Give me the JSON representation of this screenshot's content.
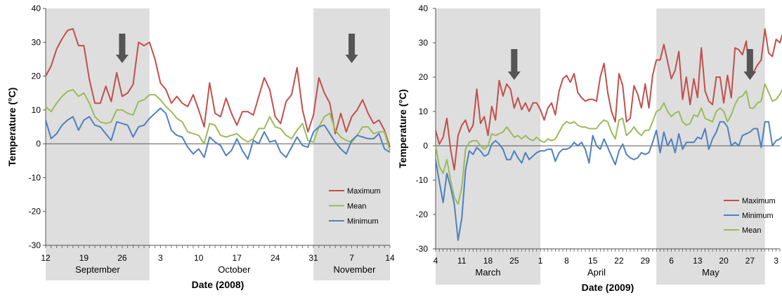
{
  "chart_data": [
    {
      "type": "line",
      "title": "",
      "xlabel": "Date (2008)",
      "ylabel": "Temperature (°C)",
      "ylim": [
        -30,
        40
      ],
      "yticks": [
        "40",
        "30",
        "20",
        "10",
        "0",
        "-10",
        "-20",
        "-30"
      ],
      "x_start": "2008-09-12",
      "x_end": "2008-11-14",
      "xticks": [
        "12",
        "19",
        "26",
        "3",
        "10",
        "17",
        "24",
        "31",
        "7",
        "14"
      ],
      "month_labels": [
        "September",
        "October",
        "November"
      ],
      "shaded_periods": [
        [
          "2008-09-12",
          "2008-10-01"
        ],
        [
          "2008-10-31",
          "2008-11-14"
        ]
      ],
      "arrow_dates": [
        "2008-09-26",
        "2008-11-07"
      ],
      "legend_position": "lower-right",
      "grid": false,
      "series": [
        {
          "name": "Maximum",
          "color": "#c0504d",
          "values": [
            20,
            23,
            28,
            31,
            33.5,
            34,
            29,
            29,
            19,
            12,
            12,
            17,
            12.5,
            21,
            14,
            15,
            17.5,
            30,
            29,
            30,
            25,
            18,
            16,
            12,
            14,
            12,
            11,
            14.5,
            10,
            5,
            18,
            9,
            8,
            13.5,
            9,
            5.5,
            9.5,
            9.5,
            8.5,
            14,
            19.5,
            16,
            8,
            6,
            12.5,
            14.5,
            22.5,
            10,
            3.5,
            8.5,
            19.5,
            15,
            12,
            3,
            9,
            3.5,
            8,
            10,
            13,
            9,
            6,
            7,
            4,
            -1
          ]
        },
        {
          "name": "Mean",
          "color": "#9bbb59",
          "values": [
            11,
            9.5,
            12,
            14,
            15.5,
            16,
            14,
            15,
            12,
            8,
            6.5,
            6,
            6.5,
            10,
            10,
            9,
            8.5,
            12.5,
            13,
            14.5,
            14.5,
            13,
            11,
            9.5,
            7.5,
            6.5,
            3.5,
            3,
            2.5,
            0,
            6,
            5.5,
            2.5,
            2,
            2.5,
            3,
            1.5,
            0.5,
            1.5,
            4.5,
            4.5,
            8,
            5,
            4.5,
            2.5,
            1.5,
            4,
            6,
            1,
            0.5,
            5,
            8,
            9,
            4,
            2,
            1,
            0.5,
            2.5,
            5,
            5,
            3,
            3.5,
            3.5,
            -2
          ]
        },
        {
          "name": "Minimum",
          "color": "#4f81bd",
          "values": [
            7,
            1.5,
            3,
            5.5,
            7,
            8,
            4,
            7,
            8,
            5.5,
            5,
            3,
            1,
            6.5,
            6,
            5.5,
            2,
            5,
            5.5,
            7.5,
            9,
            10.5,
            9,
            4,
            2.5,
            2,
            -1,
            -3,
            -1.5,
            -4,
            2,
            0.5,
            -0.5,
            -3.5,
            -2,
            1.5,
            -2,
            -4.5,
            1,
            0,
            3.5,
            0.5,
            1,
            -2.5,
            -4,
            -1,
            2,
            -0.5,
            -1,
            3.5,
            5,
            5.5,
            3,
            0.5,
            -1.5,
            -3,
            1,
            2.5,
            2,
            1.5,
            1.5,
            3,
            -1.5,
            -2.5
          ]
        }
      ]
    },
    {
      "type": "line",
      "title": "",
      "xlabel": "Date (2009)",
      "ylabel": "Temperature (°C)",
      "ylim": [
        -30,
        40
      ],
      "yticks": [
        "40",
        "30",
        "20",
        "10",
        "0",
        "-10",
        "-20",
        "-30"
      ],
      "x_start": "2009-03-04",
      "x_end": "2009-06-04",
      "xticks": [
        "4",
        "11",
        "18",
        "25",
        "1",
        "8",
        "15",
        "22",
        "29",
        "6",
        "13",
        "20",
        "27",
        "3"
      ],
      "month_labels": [
        "March",
        "April",
        "May"
      ],
      "shaded_periods": [
        [
          "2009-03-04",
          "2009-04-01"
        ],
        [
          "2009-05-02",
          "2009-05-31"
        ]
      ],
      "arrow_dates": [
        "2009-03-25",
        "2009-05-27"
      ],
      "legend_position": "lower-right",
      "grid": false,
      "series": [
        {
          "name": "Maximum",
          "color": "#c0504d",
          "values": [
            4.5,
            0.5,
            2.5,
            8,
            -1,
            -7,
            3,
            6,
            7.5,
            4,
            6,
            16.5,
            6.5,
            8.5,
            3,
            11.5,
            7.5,
            19,
            14.5,
            18,
            16.5,
            11,
            14,
            10.5,
            12.5,
            10,
            12.5,
            12.5,
            10.5,
            7.5,
            11,
            12.5,
            9,
            16,
            19.5,
            20.5,
            18.5,
            21,
            15.5,
            14,
            13,
            13.5,
            13.5,
            13,
            20,
            24,
            15.5,
            10,
            7,
            21,
            17.5,
            7,
            8,
            17.5,
            15,
            11,
            18,
            11,
            20.5,
            25,
            25,
            29.5,
            24.5,
            19.5,
            22,
            27.5,
            13.5,
            20,
            12,
            19.5,
            14,
            28.5,
            16,
            13,
            12,
            20,
            20,
            12.5,
            20.5,
            14,
            28.5,
            28,
            26.5,
            30.5,
            19.5,
            21.5,
            23.5,
            25,
            34,
            27,
            26,
            31,
            30,
            33.5,
            37,
            26.5
          ]
        },
        {
          "name": "Minimum",
          "color": "#4f81bd",
          "values": [
            -4,
            -10.5,
            -16.5,
            -8,
            -12,
            -17,
            -27.5,
            -21,
            -7,
            -1.5,
            -2.5,
            -0.5,
            -1.5,
            -3,
            -2.5,
            0.5,
            1.5,
            0.5,
            -1,
            -4,
            -4,
            -1.5,
            -3.5,
            -5,
            -2,
            -4,
            -3,
            -2,
            -1.5,
            -1.5,
            -1,
            -1,
            -4.5,
            -2,
            -1,
            -1,
            -0.5,
            1,
            0,
            1,
            -1,
            -5,
            3,
            0,
            -1,
            2,
            -0.5,
            -3,
            -5.5,
            -1.5,
            0.5,
            -2.5,
            -3.5,
            -4,
            -3.5,
            -2,
            -2.5,
            -2,
            1,
            4.5,
            -2,
            4,
            0,
            2,
            -2,
            3.5,
            -1,
            1,
            1,
            1,
            2.5,
            2,
            5,
            -1,
            2,
            4,
            7,
            7,
            5.5,
            0,
            1,
            0,
            3,
            3.5,
            4,
            5,
            5,
            -0.5,
            7,
            7,
            0,
            1.5,
            2,
            3,
            5,
            8
          ]
        },
        {
          "name": "Mean",
          "color": "#9bbb59",
          "values": [
            0,
            -6,
            -8,
            -4,
            -10,
            -15,
            -17,
            -12,
            -1,
            1,
            1.5,
            1.5,
            0,
            -1,
            0,
            3.5,
            3,
            3.5,
            4,
            5.5,
            4,
            2.5,
            3,
            2,
            3,
            2,
            1.5,
            2.5,
            1.5,
            1,
            2,
            1.5,
            2,
            4,
            6,
            7,
            6.5,
            7,
            6,
            5.5,
            5.5,
            5,
            5,
            5,
            6.5,
            7.5,
            7,
            4,
            2,
            7.5,
            8,
            3,
            4,
            5.5,
            4,
            3,
            4.5,
            4.5,
            7,
            10,
            10.5,
            12.5,
            10,
            8.5,
            9.5,
            10,
            7,
            6,
            6.5,
            9,
            8.5,
            11,
            8,
            7.5,
            7,
            10,
            11,
            10,
            7,
            9,
            12,
            14,
            14.5,
            16,
            11,
            11,
            12.5,
            13,
            18,
            15.5,
            13,
            13.5,
            15,
            17,
            18.5,
            16.5
          ]
        }
      ]
    }
  ]
}
